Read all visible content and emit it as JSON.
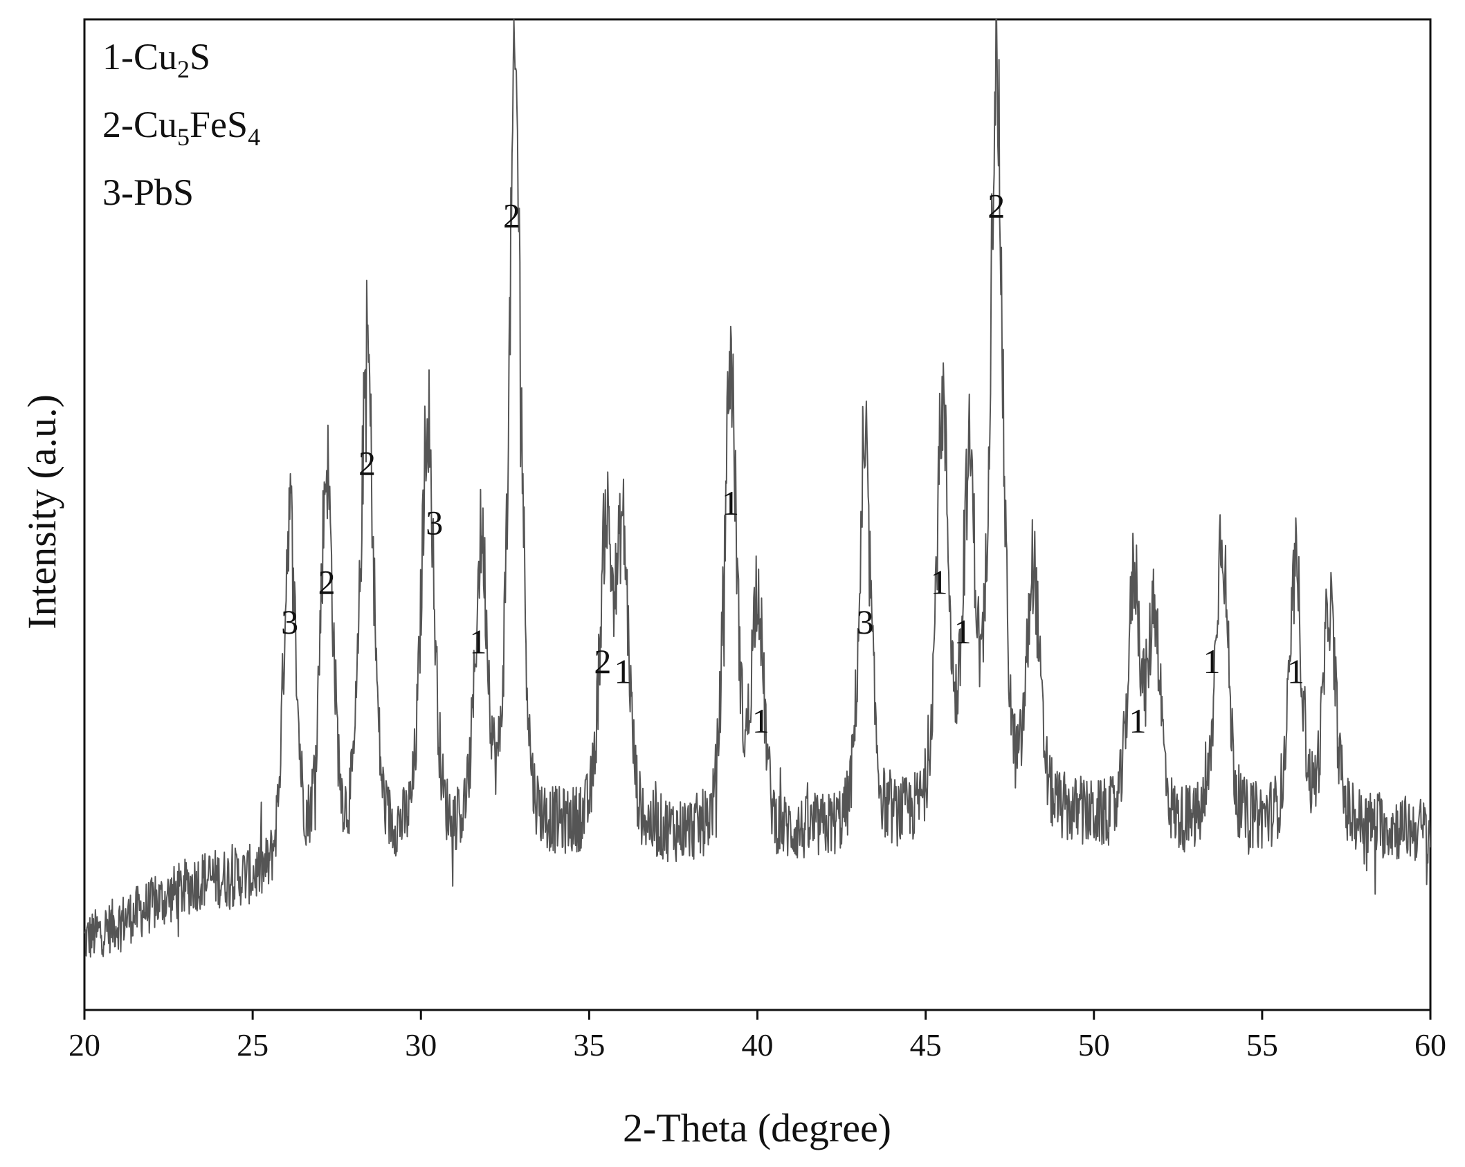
{
  "chart_data": {
    "type": "line",
    "title": "",
    "xlabel": "2-Theta (degree)",
    "ylabel": "Intensity (a.u.)",
    "xlim": [
      20,
      60
    ],
    "ylim": [
      0,
      100
    ],
    "x_ticks": [
      "20",
      "25",
      "30",
      "35",
      "40",
      "45",
      "50",
      "55",
      "60"
    ],
    "y_ticks_shown": false,
    "grid": false,
    "line_color": "#555555",
    "legend": {
      "placement": "top-left",
      "entries": [
        {
          "prefix": "1-",
          "formula": [
            {
              "t": "Cu"
            },
            {
              "t": "2",
              "sub": true
            },
            {
              "t": "S"
            }
          ]
        },
        {
          "prefix": "2-",
          "formula": [
            {
              "t": "Cu"
            },
            {
              "t": "5",
              "sub": true
            },
            {
              "t": "FeS"
            },
            {
              "t": "4",
              "sub": true
            }
          ]
        },
        {
          "prefix": "3-",
          "formula": [
            {
              "t": "PbS"
            }
          ]
        }
      ]
    },
    "baseline": [
      [
        20,
        7
      ],
      [
        23.5,
        13
      ],
      [
        25.8,
        13
      ],
      [
        27,
        16
      ],
      [
        30,
        17
      ],
      [
        35,
        18
      ],
      [
        40,
        17
      ],
      [
        45,
        19
      ],
      [
        48,
        20
      ],
      [
        52,
        18
      ],
      [
        56,
        19
      ],
      [
        60,
        18
      ]
    ],
    "noise_amplitude": 3.5,
    "peaks": [
      {
        "x": 26.1,
        "height": 36,
        "label": "3",
        "label_x": 26.1,
        "label_y": 38
      },
      {
        "x": 27.2,
        "height": 38,
        "label": "2",
        "label_x": 27.2,
        "label_y": 42
      },
      {
        "x": 28.4,
        "height": 50,
        "label": "2",
        "label_x": 28.4,
        "label_y": 54
      },
      {
        "x": 30.2,
        "height": 43,
        "label": "3",
        "label_x": 30.4,
        "label_y": 48
      },
      {
        "x": 31.8,
        "height": 29,
        "label": "1",
        "label_x": 31.7,
        "label_y": 36
      },
      {
        "x": 32.8,
        "height": 76,
        "label": "2",
        "label_x": 32.7,
        "label_y": 79
      },
      {
        "x": 35.5,
        "height": 30,
        "label": "2",
        "label_x": 35.4,
        "label_y": 34
      },
      {
        "x": 36.0,
        "height": 29,
        "label": "1",
        "label_x": 36.0,
        "label_y": 33
      },
      {
        "x": 39.2,
        "height": 48,
        "label": "1",
        "label_x": 39.2,
        "label_y": 50
      },
      {
        "x": 40.0,
        "height": 25,
        "label": "1",
        "label_x": 40.1,
        "label_y": 28
      },
      {
        "x": 43.2,
        "height": 36,
        "label": "3",
        "label_x": 43.2,
        "label_y": 38
      },
      {
        "x": 45.5,
        "height": 41,
        "label": "1",
        "label_x": 45.4,
        "label_y": 42
      },
      {
        "x": 46.3,
        "height": 34,
        "label": "1",
        "label_x": 46.1,
        "label_y": 37
      },
      {
        "x": 47.1,
        "height": 75,
        "label": "2",
        "label_x": 47.1,
        "label_y": 80
      },
      {
        "x": 48.2,
        "height": 24
      },
      {
        "x": 51.2,
        "height": 25,
        "label": "1",
        "label_x": 51.3,
        "label_y": 28
      },
      {
        "x": 51.8,
        "height": 22
      },
      {
        "x": 53.8,
        "height": 30,
        "label": "1",
        "label_x": 53.5,
        "label_y": 34
      },
      {
        "x": 56.0,
        "height": 25,
        "label": "1",
        "label_x": 56.0,
        "label_y": 33
      },
      {
        "x": 57.0,
        "height": 22
      }
    ]
  }
}
